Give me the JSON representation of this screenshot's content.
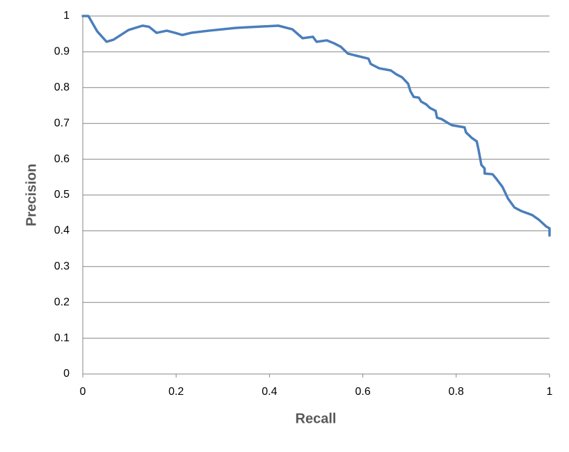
{
  "chart_data": {
    "type": "line",
    "x_label": "Recall",
    "y_label": "Precision",
    "x": [
      0,
      0.012,
      0.031,
      0.051,
      0.066,
      0.098,
      0.128,
      0.142,
      0.158,
      0.18,
      0.198,
      0.213,
      0.232,
      0.27,
      0.329,
      0.419,
      0.449,
      0.471,
      0.493,
      0.501,
      0.523,
      0.538,
      0.553,
      0.568,
      0.612,
      0.617,
      0.635,
      0.66,
      0.672,
      0.684,
      0.697,
      0.702,
      0.709,
      0.72,
      0.725,
      0.736,
      0.744,
      0.756,
      0.759,
      0.769,
      0.784,
      0.791,
      0.818,
      0.821,
      0.833,
      0.844,
      0.848,
      0.854,
      0.861,
      0.861,
      0.878,
      0.885,
      0.899,
      0.911,
      0.925,
      0.94,
      0.963,
      0.978,
      0.993,
      1.0,
      1.0
    ],
    "values": [
      1.0,
      1.0,
      0.957,
      0.928,
      0.934,
      0.961,
      0.973,
      0.97,
      0.953,
      0.959,
      0.953,
      0.947,
      0.953,
      0.959,
      0.967,
      0.973,
      0.963,
      0.938,
      0.942,
      0.928,
      0.932,
      0.924,
      0.914,
      0.895,
      0.881,
      0.866,
      0.854,
      0.848,
      0.837,
      0.829,
      0.811,
      0.79,
      0.774,
      0.772,
      0.761,
      0.753,
      0.743,
      0.735,
      0.716,
      0.712,
      0.7,
      0.695,
      0.689,
      0.675,
      0.66,
      0.65,
      0.626,
      0.584,
      0.574,
      0.56,
      0.558,
      0.547,
      0.523,
      0.49,
      0.465,
      0.455,
      0.444,
      0.43,
      0.412,
      0.407,
      0.387
    ],
    "color": "#4a7ebb",
    "xlim": [
      0,
      1
    ],
    "xticks": [
      0,
      0.2,
      0.4,
      0.6,
      0.8,
      1
    ],
    "ylim": [
      0,
      1
    ],
    "yticks": [
      0,
      0.1,
      0.2,
      0.3,
      0.4,
      0.5,
      0.6,
      0.7,
      0.8,
      0.9,
      1
    ],
    "grid": true
  }
}
